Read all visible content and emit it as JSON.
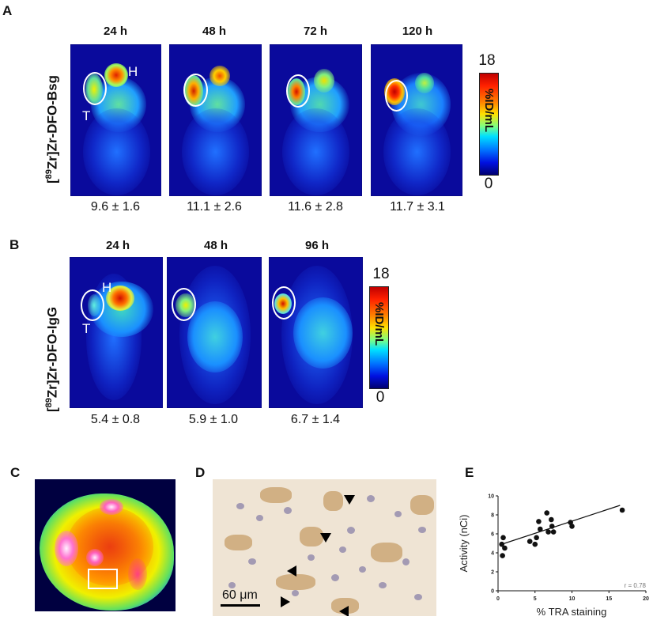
{
  "figure": {
    "panel_A": {
      "letter": "A",
      "row_label": "[89Zr]Zr-DFO-Bsg",
      "row_label_sup": "89",
      "row_label_rest": "Zr]Zr-DFO-Bsg",
      "timepoints": [
        {
          "label": "24 h",
          "value": "9.6 ± 1.6"
        },
        {
          "label": "48 h",
          "value": "11.1 ± 2.6"
        },
        {
          "label": "72 h",
          "value": "11.6 ± 2.8"
        },
        {
          "label": "120 h",
          "value": "11.7 ± 3.1"
        }
      ],
      "markers": {
        "tumor": "T",
        "heart": "H"
      },
      "colorbar": {
        "max": "18",
        "min": "0",
        "unit": "%ID/mL"
      }
    },
    "panel_B": {
      "letter": "B",
      "row_label": "[89Zr]Zr-DFO-IgG",
      "row_label_sup": "89",
      "row_label_rest": "Zr]Zr-DFO-IgG",
      "timepoints": [
        {
          "label": "24 h",
          "value": "5.4 ± 0.8"
        },
        {
          "label": "48 h",
          "value": "5.9 ± 1.0"
        },
        {
          "label": "96 h",
          "value": "6.7 ± 1.4"
        }
      ],
      "markers": {
        "tumor": "T",
        "heart": "H"
      },
      "colorbar": {
        "max": "18",
        "min": "0",
        "unit": "%ID/mL"
      }
    },
    "panel_C": {
      "letter": "C"
    },
    "panel_D": {
      "letter": "D",
      "scale_bar": "60 μm"
    },
    "panel_E": {
      "letter": "E"
    }
  },
  "chart_data": {
    "type": "scatter",
    "title": "",
    "xlabel": "% TRA staining",
    "ylabel": "Activity (nCi)",
    "xlim": [
      0,
      20
    ],
    "ylim": [
      0,
      10
    ],
    "xticks": [
      "0",
      "5",
      "10",
      "15",
      "20"
    ],
    "yticks": [
      "0",
      "2",
      "4",
      "6",
      "8",
      "10"
    ],
    "annotation": "r = 0.78",
    "grid": false,
    "points": [
      {
        "x": 0.5,
        "y": 4.9
      },
      {
        "x": 0.7,
        "y": 5.6
      },
      {
        "x": 0.9,
        "y": 4.5
      },
      {
        "x": 0.6,
        "y": 3.7
      },
      {
        "x": 4.3,
        "y": 5.2
      },
      {
        "x": 5.0,
        "y": 4.9
      },
      {
        "x": 5.2,
        "y": 5.6
      },
      {
        "x": 5.5,
        "y": 7.3
      },
      {
        "x": 5.7,
        "y": 6.5
      },
      {
        "x": 6.6,
        "y": 8.2
      },
      {
        "x": 6.8,
        "y": 6.2
      },
      {
        "x": 7.2,
        "y": 7.5
      },
      {
        "x": 7.3,
        "y": 6.8
      },
      {
        "x": 7.5,
        "y": 6.2
      },
      {
        "x": 9.8,
        "y": 7.2
      },
      {
        "x": 10.0,
        "y": 6.8
      },
      {
        "x": 16.8,
        "y": 8.5
      }
    ],
    "fit_line": {
      "x": [
        0.5,
        16.5
      ],
      "y": [
        4.9,
        9.0
      ]
    }
  }
}
